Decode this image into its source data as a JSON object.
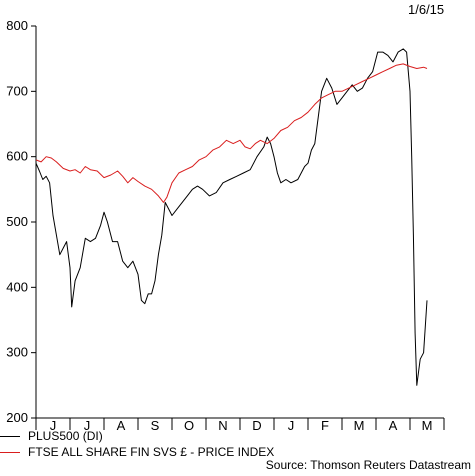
{
  "chart_data": {
    "type": "line",
    "date_label": "1/6/15",
    "ylim": [
      200,
      800
    ],
    "yticks": [
      200,
      300,
      400,
      500,
      600,
      700,
      800
    ],
    "month_labels": [
      "J",
      "J",
      "A",
      "S",
      "O",
      "N",
      "D",
      "J",
      "F",
      "M",
      "A",
      "M"
    ],
    "x_range": [
      0,
      12
    ],
    "grid": false,
    "legend_position": "bottom-left",
    "source": "Source: Thomson Reuters Datastream",
    "series": [
      {
        "name": "PLUS500 (DI)",
        "color": "#000000",
        "points": [
          [
            0.0,
            590
          ],
          [
            0.1,
            578
          ],
          [
            0.2,
            565
          ],
          [
            0.3,
            570
          ],
          [
            0.4,
            560
          ],
          [
            0.5,
            510
          ],
          [
            0.6,
            480
          ],
          [
            0.7,
            450
          ],
          [
            0.8,
            460
          ],
          [
            0.9,
            470
          ],
          [
            1.0,
            430
          ],
          [
            1.05,
            370
          ],
          [
            1.15,
            410
          ],
          [
            1.3,
            430
          ],
          [
            1.45,
            475
          ],
          [
            1.6,
            470
          ],
          [
            1.75,
            475
          ],
          [
            1.9,
            495
          ],
          [
            2.0,
            515
          ],
          [
            2.1,
            500
          ],
          [
            2.25,
            470
          ],
          [
            2.4,
            470
          ],
          [
            2.55,
            440
          ],
          [
            2.7,
            430
          ],
          [
            2.85,
            440
          ],
          [
            3.0,
            420
          ],
          [
            3.1,
            380
          ],
          [
            3.2,
            375
          ],
          [
            3.3,
            390
          ],
          [
            3.4,
            390
          ],
          [
            3.5,
            410
          ],
          [
            3.6,
            450
          ],
          [
            3.7,
            480
          ],
          [
            3.8,
            530
          ],
          [
            3.9,
            520
          ],
          [
            4.0,
            510
          ],
          [
            4.15,
            520
          ],
          [
            4.3,
            530
          ],
          [
            4.45,
            540
          ],
          [
            4.6,
            550
          ],
          [
            4.75,
            555
          ],
          [
            4.9,
            550
          ],
          [
            5.1,
            540
          ],
          [
            5.3,
            545
          ],
          [
            5.5,
            560
          ],
          [
            5.7,
            565
          ],
          [
            5.9,
            570
          ],
          [
            6.1,
            575
          ],
          [
            6.3,
            580
          ],
          [
            6.5,
            600
          ],
          [
            6.7,
            615
          ],
          [
            6.8,
            630
          ],
          [
            6.9,
            620
          ],
          [
            7.0,
            600
          ],
          [
            7.1,
            575
          ],
          [
            7.2,
            560
          ],
          [
            7.35,
            565
          ],
          [
            7.5,
            560
          ],
          [
            7.7,
            565
          ],
          [
            7.9,
            585
          ],
          [
            8.0,
            590
          ],
          [
            8.1,
            610
          ],
          [
            8.2,
            620
          ],
          [
            8.3,
            660
          ],
          [
            8.4,
            700
          ],
          [
            8.55,
            720
          ],
          [
            8.7,
            705
          ],
          [
            8.85,
            680
          ],
          [
            9.0,
            690
          ],
          [
            9.15,
            700
          ],
          [
            9.3,
            710
          ],
          [
            9.45,
            700
          ],
          [
            9.6,
            705
          ],
          [
            9.75,
            720
          ],
          [
            9.9,
            730
          ],
          [
            10.05,
            760
          ],
          [
            10.2,
            760
          ],
          [
            10.35,
            755
          ],
          [
            10.5,
            745
          ],
          [
            10.65,
            760
          ],
          [
            10.8,
            765
          ],
          [
            10.9,
            760
          ],
          [
            11.0,
            700
          ],
          [
            11.05,
            600
          ],
          [
            11.1,
            480
          ],
          [
            11.15,
            330
          ],
          [
            11.2,
            250
          ],
          [
            11.3,
            290
          ],
          [
            11.4,
            300
          ],
          [
            11.5,
            380
          ]
        ]
      },
      {
        "name": "FTSE ALL SHARE FIN SVS £ - PRICE INDEX",
        "color": "#d91e1e",
        "points": [
          [
            0.0,
            595
          ],
          [
            0.15,
            592
          ],
          [
            0.3,
            600
          ],
          [
            0.45,
            598
          ],
          [
            0.6,
            592
          ],
          [
            0.8,
            582
          ],
          [
            1.0,
            578
          ],
          [
            1.15,
            580
          ],
          [
            1.3,
            575
          ],
          [
            1.45,
            585
          ],
          [
            1.6,
            580
          ],
          [
            1.8,
            578
          ],
          [
            2.0,
            568
          ],
          [
            2.2,
            572
          ],
          [
            2.4,
            578
          ],
          [
            2.55,
            570
          ],
          [
            2.7,
            560
          ],
          [
            2.85,
            568
          ],
          [
            3.0,
            562
          ],
          [
            3.2,
            555
          ],
          [
            3.4,
            550
          ],
          [
            3.6,
            540
          ],
          [
            3.75,
            530
          ],
          [
            3.85,
            538
          ],
          [
            4.0,
            560
          ],
          [
            4.2,
            575
          ],
          [
            4.4,
            580
          ],
          [
            4.6,
            585
          ],
          [
            4.8,
            595
          ],
          [
            5.0,
            600
          ],
          [
            5.2,
            610
          ],
          [
            5.4,
            615
          ],
          [
            5.6,
            625
          ],
          [
            5.8,
            620
          ],
          [
            6.0,
            625
          ],
          [
            6.15,
            615
          ],
          [
            6.3,
            612
          ],
          [
            6.45,
            620
          ],
          [
            6.6,
            625
          ],
          [
            6.8,
            620
          ],
          [
            7.0,
            628
          ],
          [
            7.2,
            640
          ],
          [
            7.4,
            645
          ],
          [
            7.6,
            655
          ],
          [
            7.8,
            660
          ],
          [
            8.0,
            668
          ],
          [
            8.2,
            680
          ],
          [
            8.4,
            690
          ],
          [
            8.6,
            695
          ],
          [
            8.8,
            700
          ],
          [
            9.0,
            700
          ],
          [
            9.2,
            705
          ],
          [
            9.4,
            710
          ],
          [
            9.6,
            715
          ],
          [
            9.8,
            720
          ],
          [
            10.0,
            725
          ],
          [
            10.2,
            730
          ],
          [
            10.4,
            735
          ],
          [
            10.6,
            740
          ],
          [
            10.8,
            742
          ],
          [
            11.0,
            738
          ],
          [
            11.2,
            735
          ],
          [
            11.4,
            737
          ],
          [
            11.5,
            735
          ]
        ]
      }
    ]
  }
}
